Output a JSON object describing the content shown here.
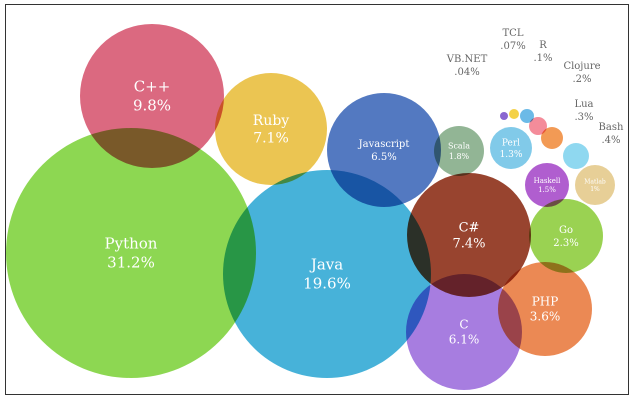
{
  "chart_data": {
    "type": "bubble",
    "title": "",
    "bubbles": [
      {
        "name": "Python",
        "value": "31.2%",
        "color": "#7dd13a"
      },
      {
        "name": "Java",
        "value": "19.6%",
        "color": "#2ea7d4"
      },
      {
        "name": "C++",
        "value": "9.8%",
        "color": "#d6546e"
      },
      {
        "name": "Ruby",
        "value": "7.1%",
        "color": "#e8bd3a"
      },
      {
        "name": "C#",
        "value": "7.4%",
        "color": "#8a2a12"
      },
      {
        "name": "Javascript",
        "value": "6.5%",
        "color": "#3b66b8"
      },
      {
        "name": "C",
        "value": "6.1%",
        "color": "#9b6bdc"
      },
      {
        "name": "PHP",
        "value": "3.6%",
        "color": "#e8793c"
      },
      {
        "name": "Go",
        "value": "2.3%",
        "color": "#8ccc3a"
      },
      {
        "name": "Scala",
        "value": "1.8%",
        "color": "#83ab86"
      },
      {
        "name": "Perl",
        "value": "1.3%",
        "color": "#6fc3e6"
      },
      {
        "name": "Haskell",
        "value": "1.5%",
        "color": "#a548c8"
      },
      {
        "name": "Matlab",
        "value": "1%",
        "color": "#e4c889"
      },
      {
        "name": "Bash",
        "value": ".4%",
        "color": "#7fd3ee"
      },
      {
        "name": "Lua",
        "value": ".3%",
        "color": "#f08c3e"
      },
      {
        "name": "Clojure",
        "value": ".2%",
        "color": "#f27c8c"
      },
      {
        "name": "R",
        "value": ".1%",
        "color": "#58b0e4"
      },
      {
        "name": "TCL",
        "value": ".07%",
        "color": "#f2cb2c"
      },
      {
        "name": "VB.NET",
        "value": ".04%",
        "color": "#7a52c9"
      }
    ]
  }
}
